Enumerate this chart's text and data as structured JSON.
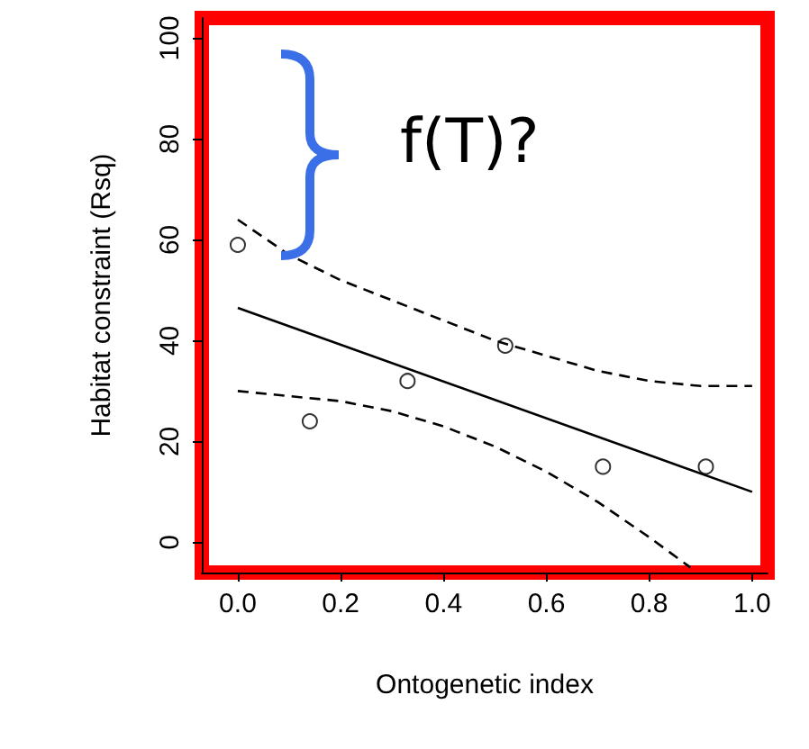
{
  "chart_data": {
    "type": "scatter",
    "xlabel": "Ontogenetic index",
    "ylabel": "Habitat constraint (Rsq)",
    "annotations": [
      "f(T)?"
    ],
    "xlim": [
      -0.07,
      1.03
    ],
    "ylim": [
      -6,
      104
    ],
    "xticks": [
      {
        "value": 0,
        "label": "0.0"
      },
      {
        "value": 0.2,
        "label": "0.2"
      },
      {
        "value": 0.4,
        "label": "0.4"
      },
      {
        "value": 0.6,
        "label": "0.6"
      },
      {
        "value": 0.8,
        "label": "0.8"
      },
      {
        "value": 1,
        "label": "1.0"
      }
    ],
    "yticks": [
      0,
      20,
      40,
      60,
      80,
      100
    ],
    "grid": false,
    "series": [
      {
        "type": "scatter",
        "x": [
          0,
          0.14,
          0.33,
          0.52,
          0.71,
          0.91
        ],
        "values": [
          59,
          24,
          32,
          39,
          15,
          15
        ],
        "color": "#000000",
        "marker": "circle"
      },
      {
        "type": "line",
        "x": [
          0,
          1
        ],
        "values": [
          46.5,
          10
        ],
        "color": "#000000",
        "line_style": "solid",
        "marker": "none"
      },
      {
        "type": "line",
        "x": [
          0,
          0.1,
          0.2,
          0.3,
          0.4,
          0.5,
          0.6,
          0.7,
          0.8,
          0.9,
          1
        ],
        "values": [
          64,
          57,
          52,
          48,
          44,
          40,
          37,
          34,
          32,
          31,
          31
        ],
        "color": "#000000",
        "line_style": "dashed",
        "marker": "none"
      },
      {
        "type": "line",
        "x": [
          0,
          0.1,
          0.2,
          0.3,
          0.4,
          0.5,
          0.6,
          0.7,
          0.8,
          0.88
        ],
        "values": [
          30,
          29,
          28,
          26,
          23,
          19,
          14,
          8,
          1,
          -5
        ],
        "color": "#000000",
        "line_style": "dashed",
        "marker": "none"
      }
    ]
  }
}
